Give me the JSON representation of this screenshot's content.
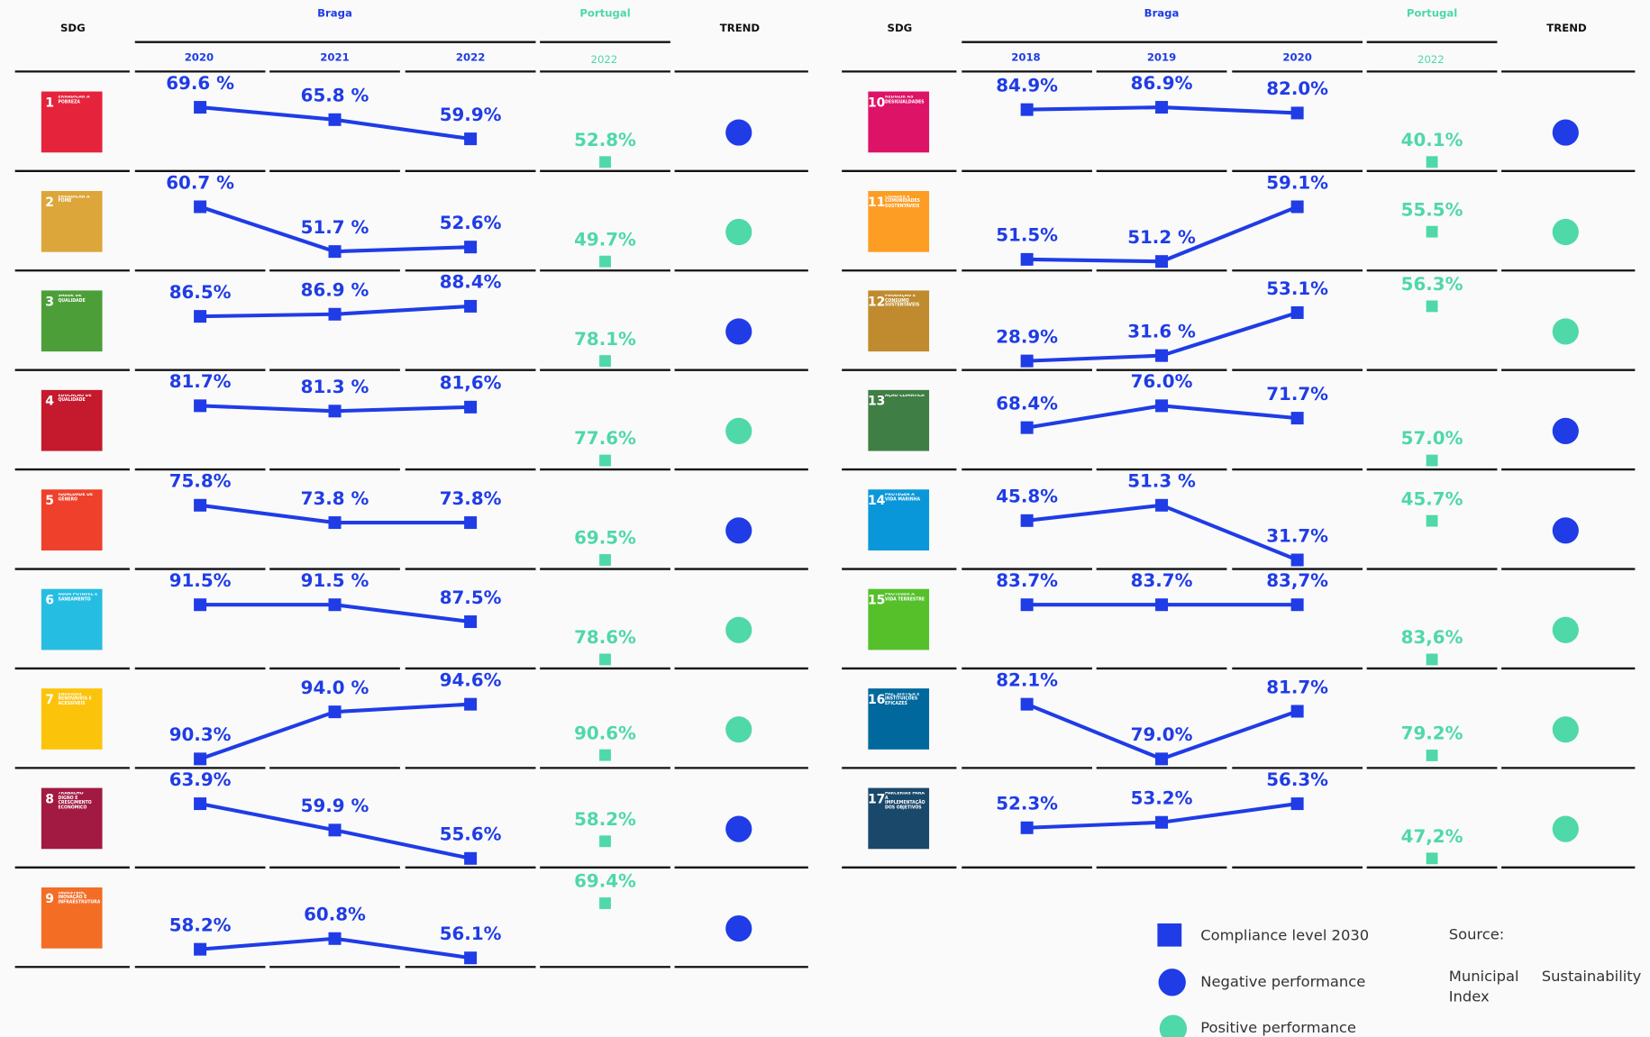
{
  "colors": {
    "braga": "#1f3ce6",
    "portugal": "#4fd8a8",
    "negative": "#1f3ce6",
    "positive": "#4fd8a8"
  },
  "panels": [
    {
      "header": {
        "sdg": "SDG",
        "braga": "Braga",
        "years": [
          2020,
          2021,
          2022
        ],
        "portugal": "Portugal",
        "portugal_year": 2022,
        "trend": "TREND"
      },
      "rows": [
        {
          "number": 1,
          "name": "ERRADICAR A POBREZA",
          "color": "#e5243b",
          "braga": {
            "values": [
              69.6,
              65.8,
              59.9
            ],
            "value_labels": [
              "69.6 %",
              "65.8 %",
              "59.9%"
            ]
          },
          "portugal": {
            "value": 52.8,
            "value_label": "52.8%"
          },
          "trend": "negative"
        },
        {
          "number": 2,
          "name": "ERRADICAR A FOME",
          "color": "#dda63a",
          "braga": {
            "values": [
              60.7,
              51.7,
              52.6
            ],
            "value_labels": [
              "60.7 %",
              "51.7 %",
              "52.6%"
            ]
          },
          "portugal": {
            "value": 49.7,
            "value_label": "49.7%"
          },
          "trend": "positive"
        },
        {
          "number": 3,
          "name": "SAÚDE DE QUALIDADE",
          "color": "#4c9f38",
          "braga": {
            "values": [
              86.5,
              86.9,
              88.4
            ],
            "value_labels": [
              "86.5%",
              "86.9 %",
              "88.4%"
            ]
          },
          "portugal": {
            "value": 78.1,
            "value_label": "78.1%"
          },
          "trend": "negative"
        },
        {
          "number": 4,
          "name": "EDUCAÇÃO DE QUALIDADE",
          "color": "#c5192d",
          "braga": {
            "values": [
              81.7,
              81.3,
              81.6
            ],
            "value_labels": [
              "81.7%",
              "81.3 %",
              "81,6%"
            ]
          },
          "portugal": {
            "value": 77.6,
            "value_label": "77.6%"
          },
          "trend": "positive"
        },
        {
          "number": 5,
          "name": "IGUALDADE DE GÉNERO",
          "color": "#ef402b",
          "braga": {
            "values": [
              75.8,
              73.8,
              73.8
            ],
            "value_labels": [
              "75.8%",
              "73.8 %",
              "73.8%"
            ]
          },
          "portugal": {
            "value": 69.5,
            "value_label": "69.5%"
          },
          "trend": "negative"
        },
        {
          "number": 6,
          "name": "ÁGUA POTÁVEL E SANEAMENTO",
          "color": "#26bde2",
          "braga": {
            "values": [
              91.5,
              91.5,
              87.5
            ],
            "value_labels": [
              "91.5%",
              "91.5 %",
              "87.5%"
            ]
          },
          "portugal": {
            "value": 78.6,
            "value_label": "78.6%"
          },
          "trend": "positive"
        },
        {
          "number": 7,
          "name": "ENERGIAS RENOVÁVEIS E ACESSÍVEIS",
          "color": "#fcc30b",
          "braga": {
            "values": [
              90.3,
              94.0,
              94.6
            ],
            "value_labels": [
              "90.3%",
              "94.0 %",
              "94.6%"
            ]
          },
          "portugal": {
            "value": 90.6,
            "value_label": "90.6%"
          },
          "trend": "positive"
        },
        {
          "number": 8,
          "name": "TRABALHO DIGNO E CRESCIMENTO ECONÓMICO",
          "color": "#a21942",
          "braga": {
            "values": [
              63.9,
              59.9,
              55.6
            ],
            "value_labels": [
              "63.9%",
              "59.9 %",
              "55.6%"
            ]
          },
          "portugal": {
            "value": 58.2,
            "value_label": "58.2%"
          },
          "trend": "negative"
        },
        {
          "number": 9,
          "name": "INDÚSTRIA, INOVAÇÃO E INFRAESTRUTURAS",
          "color": "#f36d25",
          "braga": {
            "values": [
              58.2,
              60.8,
              56.1
            ],
            "value_labels": [
              "58.2%",
              "60.8%",
              "56.1%"
            ]
          },
          "portugal": {
            "value": 69.4,
            "value_label": "69.4%"
          },
          "trend": "negative"
        }
      ]
    },
    {
      "header": {
        "sdg": "SDG",
        "braga": "Braga",
        "years": [
          2018,
          2019,
          2020
        ],
        "portugal": "Portugal",
        "portugal_year": 2022,
        "trend": "TREND"
      },
      "rows": [
        {
          "number": 10,
          "name": "REDUZIR AS DESIGUALDADES",
          "color": "#dd1367",
          "braga": {
            "values": [
              84.9,
              86.9,
              82.0
            ],
            "value_labels": [
              "84.9%",
              "86.9%",
              "82.0%"
            ]
          },
          "portugal": {
            "value": 40.1,
            "value_label": "40.1%"
          },
          "trend": "negative"
        },
        {
          "number": 11,
          "name": "CIDADES E COMUNIDADES SUSTENTÁVEIS",
          "color": "#fd9d24",
          "braga": {
            "values": [
              51.5,
              51.2,
              59.1
            ],
            "value_labels": [
              "51.5%",
              "51.2 %",
              "59.1%"
            ]
          },
          "portugal": {
            "value": 55.5,
            "value_label": "55.5%"
          },
          "trend": "positive"
        },
        {
          "number": 12,
          "name": "PRODUÇÃO E CONSUMO SUSTENTÁVEIS",
          "color": "#bf8b2e",
          "braga": {
            "values": [
              28.9,
              31.6,
              53.1
            ],
            "value_labels": [
              "28.9%",
              "31.6 %",
              "53.1%"
            ]
          },
          "portugal": {
            "value": 56.3,
            "value_label": "56.3%"
          },
          "trend": "positive"
        },
        {
          "number": 13,
          "name": "AÇÃO CLIMÁTICA",
          "color": "#3f7e44",
          "braga": {
            "values": [
              68.4,
              76.0,
              71.7
            ],
            "value_labels": [
              "68.4%",
              "76.0%",
              "71.7%"
            ]
          },
          "portugal": {
            "value": 57.0,
            "value_label": "57.0%"
          },
          "trend": "negative"
        },
        {
          "number": 14,
          "name": "PROTEGER A VIDA MARINHA",
          "color": "#0a97d9",
          "braga": {
            "values": [
              45.8,
              51.3,
              31.7
            ],
            "value_labels": [
              "45.8%",
              "51.3 %",
              "31.7%"
            ]
          },
          "portugal": {
            "value": 45.7,
            "value_label": "45.7%"
          },
          "trend": "negative"
        },
        {
          "number": 15,
          "name": "PROTEGER A VIDA TERRESTRE",
          "color": "#56c02b",
          "braga": {
            "values": [
              83.7,
              83.7,
              83.7
            ],
            "value_labels": [
              "83.7%",
              "83.7%",
              "83,7%"
            ]
          },
          "portugal": {
            "value": 83.6,
            "value_label": "83,6%"
          },
          "trend": "positive"
        },
        {
          "number": 16,
          "name": "PAZ, JUSTIÇA E INSTITUIÇÕES EFICAZES",
          "color": "#00689d",
          "braga": {
            "values": [
              82.1,
              79.0,
              81.7
            ],
            "value_labels": [
              "82.1%",
              "79.0%",
              "81.7%"
            ]
          },
          "portugal": {
            "value": 79.2,
            "value_label": "79.2%"
          },
          "trend": "positive"
        },
        {
          "number": 17,
          "name": "PARCERIAS PARA A IMPLEMENTAÇÃO DOS OBJETIVOS",
          "color": "#19486a",
          "braga": {
            "values": [
              52.3,
              53.2,
              56.3
            ],
            "value_labels": [
              "52.3%",
              "53.2%",
              "56.3%"
            ]
          },
          "portugal": {
            "value": 47.2,
            "value_label": "47,2%"
          },
          "trend": "positive"
        }
      ]
    }
  ],
  "legend": [
    {
      "label": "Compliance level 2030",
      "shape": "square",
      "color": "braga"
    },
    {
      "label": "Negative performance",
      "shape": "circle",
      "color": "negative"
    },
    {
      "label": "Positive performance",
      "shape": "circle",
      "color": "positive"
    }
  ],
  "source": {
    "title": "Source:",
    "text": "Municipal Sustainability Index"
  }
}
